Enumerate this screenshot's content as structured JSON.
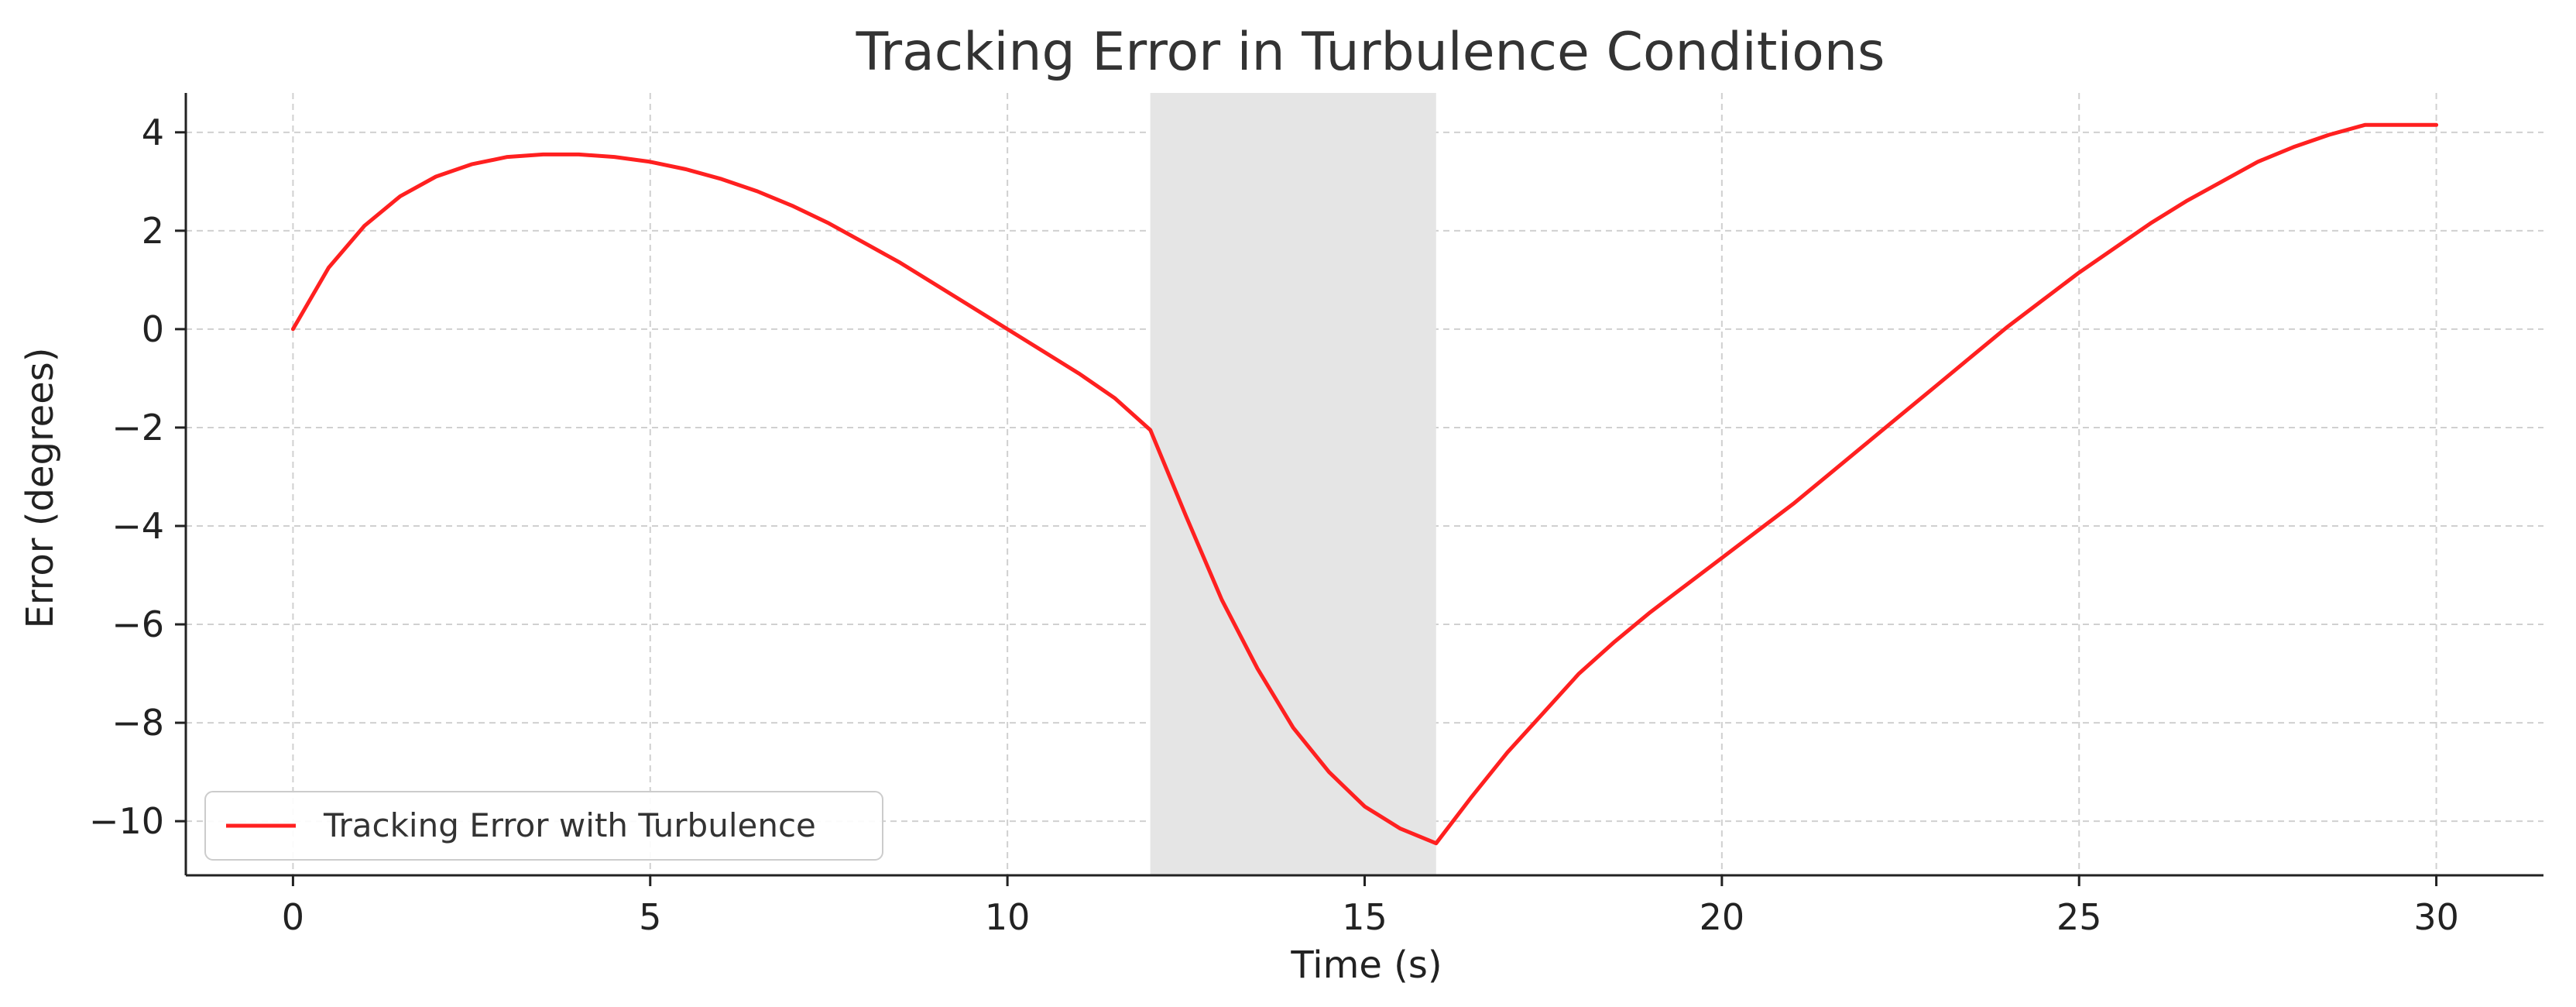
{
  "chart_data": {
    "type": "line",
    "title": "Tracking Error in Turbulence Conditions",
    "xlabel": "Time (s)",
    "ylabel": "Error (degrees)",
    "xlim": [
      -1.5,
      31.5
    ],
    "ylim": [
      -11.1,
      4.8
    ],
    "xticks": [
      0,
      5,
      10,
      15,
      20,
      25,
      30
    ],
    "yticks": [
      4,
      2,
      0,
      -2,
      -4,
      -6,
      -8,
      -10
    ],
    "ytick_labels": [
      "4",
      "2",
      "0",
      "−2",
      "−4",
      "−6",
      "−8",
      "−10"
    ],
    "grid": true,
    "legend": {
      "position": "lower-left",
      "entries": [
        "Tracking Error with Turbulence"
      ]
    },
    "shaded_region": {
      "x_start": 12,
      "x_end": 16,
      "color": "#e5e5e5"
    },
    "series": [
      {
        "name": "Tracking Error with Turbulence",
        "color": "#ff2020",
        "x": [
          0,
          0.5,
          1,
          1.5,
          2,
          2.5,
          3,
          3.5,
          4,
          4.5,
          5,
          5.5,
          6,
          6.5,
          7,
          7.5,
          8,
          8.5,
          9,
          9.5,
          10,
          10.5,
          11,
          11.5,
          12,
          12.5,
          13,
          13.5,
          14,
          14.5,
          15,
          15.5,
          16,
          16.5,
          17,
          17.5,
          18,
          18.5,
          19,
          19.5,
          20,
          20.5,
          21,
          21.5,
          22,
          22.5,
          23,
          23.5,
          24,
          24.5,
          25,
          25.5,
          26,
          26.5,
          27,
          27.5,
          28,
          28.5,
          29,
          29.5,
          30
        ],
        "y": [
          0,
          1.25,
          2.1,
          2.7,
          3.1,
          3.35,
          3.5,
          3.55,
          3.55,
          3.5,
          3.4,
          3.25,
          3.05,
          2.8,
          2.5,
          2.15,
          1.75,
          1.35,
          0.9,
          0.45,
          0.0,
          -0.45,
          -0.9,
          -1.4,
          -2.05,
          -3.8,
          -5.5,
          -6.9,
          -8.1,
          -9.0,
          -9.7,
          -10.15,
          -10.45,
          -9.5,
          -8.6,
          -7.8,
          -7.0,
          -6.35,
          -5.75,
          -5.2,
          -4.65,
          -4.1,
          -3.55,
          -2.95,
          -2.35,
          -1.75,
          -1.15,
          -0.55,
          0.05,
          0.6,
          1.15,
          1.65,
          2.15,
          2.6,
          3.0,
          3.4,
          3.7,
          3.95,
          4.15,
          4.15,
          4.15
        ]
      }
    ]
  }
}
